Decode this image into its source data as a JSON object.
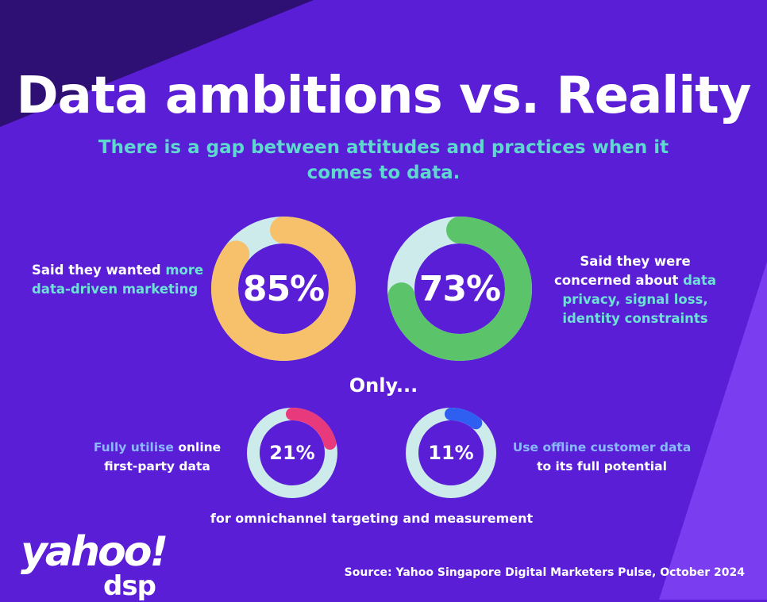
{
  "title": "Data ambitions vs. Reality",
  "subtitle": "There is a gap between attitudes and practices when it comes to data.",
  "only_label": "Only...",
  "bottom_note": "for omnichannel targeting and measurement",
  "source": "Source: Yahoo Singapore Digital Marketers Pulse, October 2024",
  "logo": {
    "brand": "yahoo!",
    "sub": "dsp"
  },
  "colors": {
    "background": "#5a1ed6",
    "track": "#cdebeb",
    "orange": "#f7c06a",
    "green": "#5bc46a",
    "pink": "#e8397d",
    "blue": "#2f5ff0",
    "teal_text": "#5fd8d0"
  },
  "chart_data": [
    {
      "type": "pie",
      "label": "85%",
      "value": 85,
      "color": "#f7c06a",
      "caption": {
        "pre": "Said they wanted ",
        "highlight": "more data-driven marketing",
        "post": ""
      }
    },
    {
      "type": "pie",
      "label": "73%",
      "value": 73,
      "color": "#5bc46a",
      "caption": {
        "pre": "Said they were concerned about ",
        "highlight": "data privacy, signal loss, identity constraints",
        "post": ""
      }
    },
    {
      "type": "pie",
      "label": "21%",
      "value": 21,
      "color": "#e8397d",
      "caption": {
        "pre": "",
        "highlight": "Fully utilise",
        "post": " online first-party data"
      }
    },
    {
      "type": "pie",
      "label": "11%",
      "value": 11,
      "color": "#2f5ff0",
      "caption": {
        "pre": "",
        "highlight": "Use offline customer data",
        "post": " to its full potential"
      }
    }
  ]
}
